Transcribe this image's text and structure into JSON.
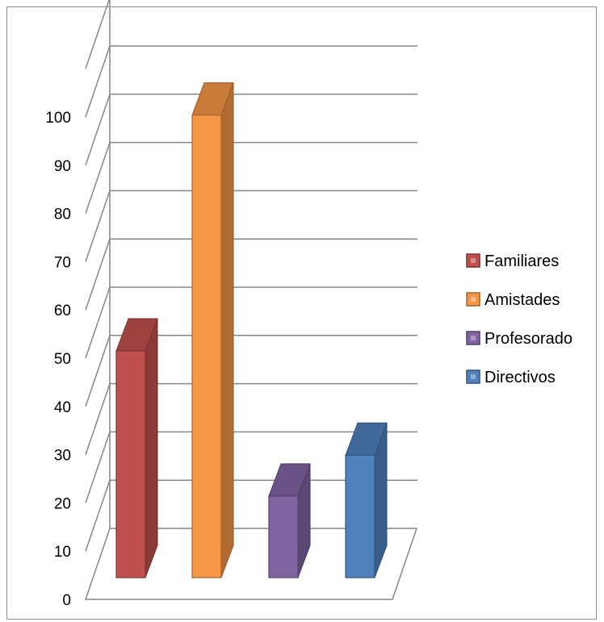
{
  "chart_data": {
    "type": "bar",
    "title": "",
    "xlabel": "",
    "ylabel": "",
    "ylim": [
      0,
      110
    ],
    "y_ticks": [
      "0",
      "10",
      "20",
      "30",
      "40",
      "50",
      "60",
      "70",
      "80",
      "90",
      "100"
    ],
    "grid": true,
    "three_d": true,
    "legend_position": "right",
    "series": [
      {
        "name": "Familiares",
        "value": 50,
        "color": "#C0504D"
      },
      {
        "name": "Amistades",
        "value": 102,
        "color": "#F79646"
      },
      {
        "name": "Profesorado",
        "value": 18,
        "color": "#8064A2"
      },
      {
        "name": "Directivos",
        "value": 27,
        "color": "#4F81BD"
      }
    ]
  }
}
